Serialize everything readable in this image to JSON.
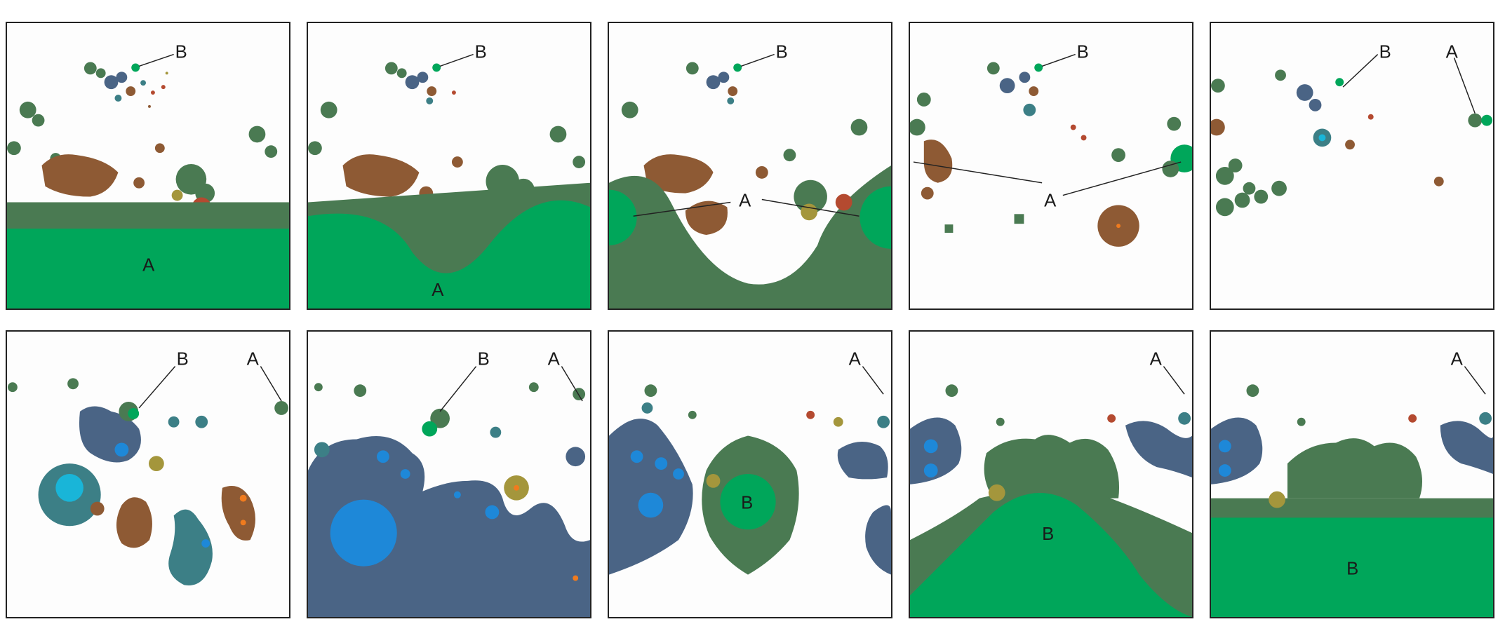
{
  "labels": {
    "a": "A",
    "b": "B"
  },
  "colors": {
    "dark_green": "#4a7a52",
    "bright_green": "#00a65a",
    "brown": "#8e5a34",
    "slate_blue": "#4a6485",
    "sky_blue": "#1e88d8",
    "teal": "#3c7f86",
    "cyan": "#19b5d8",
    "olive": "#a4963c",
    "rust": "#b44a30",
    "orange": "#f07b1e",
    "background": "#fdfdfd"
  }
}
